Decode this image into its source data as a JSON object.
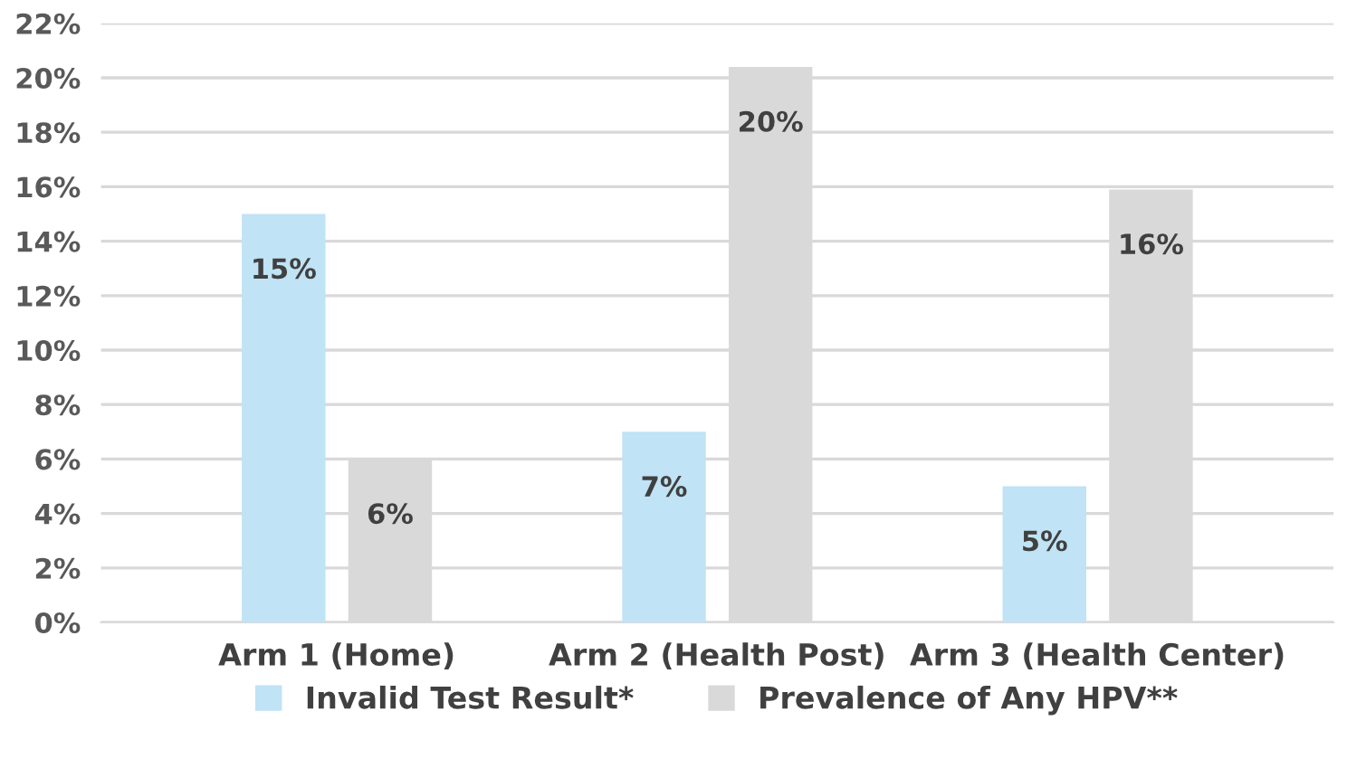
{
  "chart_data": {
    "type": "bar",
    "categories": [
      "Arm 1 (Home)",
      "Arm 2 (Health Post)",
      "Arm 3 (Health Center)"
    ],
    "series": [
      {
        "name": "Invalid Test Result*",
        "color": "#c0e3f5",
        "values": [
          15,
          7,
          5
        ],
        "value_labels": [
          "15%",
          "7%",
          "5%"
        ]
      },
      {
        "name": "Prevalence of Any HPV**",
        "color": "#d9d9d9",
        "values": [
          6,
          20.4,
          15.9
        ],
        "value_labels": [
          "6%",
          "20%",
          "16%"
        ]
      }
    ],
    "ylim": [
      0,
      22
    ],
    "yticks": [
      {
        "value": 0,
        "label": "0%"
      },
      {
        "value": 2,
        "label": "2%"
      },
      {
        "value": 4,
        "label": "4%"
      },
      {
        "value": 6,
        "label": "6%"
      },
      {
        "value": 8,
        "label": "8%"
      },
      {
        "value": 10,
        "label": "10%"
      },
      {
        "value": 12,
        "label": "12%"
      },
      {
        "value": 14,
        "label": "14%"
      },
      {
        "value": 16,
        "label": "16%"
      },
      {
        "value": 18,
        "label": "18%"
      },
      {
        "value": 20,
        "label": "20%"
      },
      {
        "value": 22,
        "label": "22%"
      }
    ],
    "grid": "y",
    "legend": "bottom"
  }
}
